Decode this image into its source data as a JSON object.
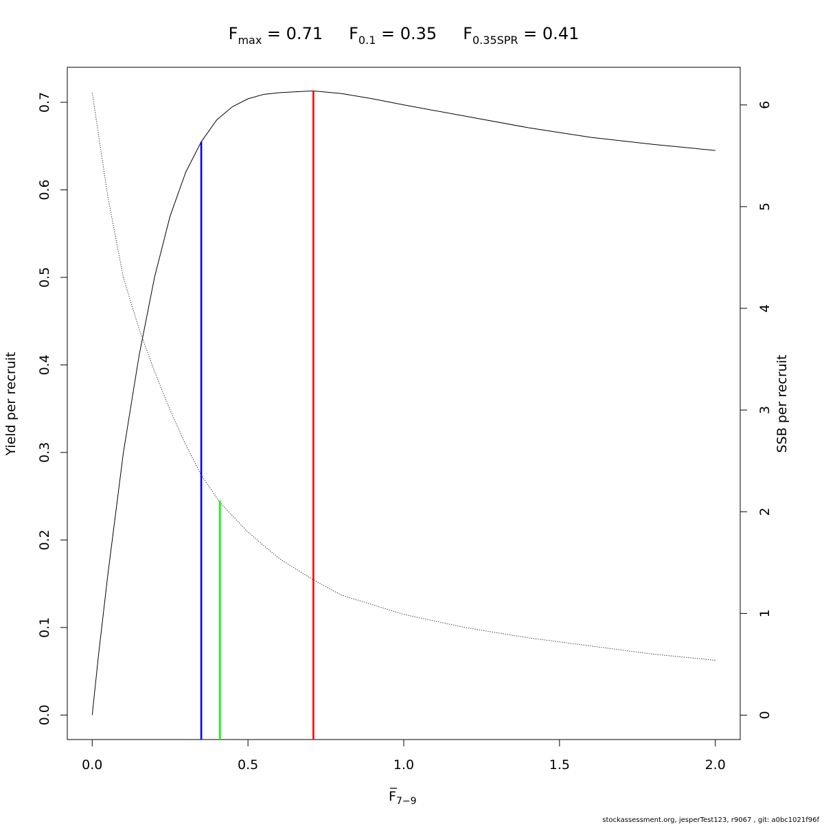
{
  "chart_data": {
    "type": "line",
    "title_parts": [
      {
        "main": "F",
        "sub": "max",
        "rest": " = 0.71"
      },
      {
        "main": "F",
        "sub": "0.1",
        "rest": " = 0.35"
      },
      {
        "main": "F",
        "sub": "0.35SPR",
        "rest": " = 0.41"
      }
    ],
    "xlabel": {
      "main": "F",
      "sub": "7−9"
    },
    "ylabel": "Yield per recruit",
    "y2label": "SSB per recruit",
    "xlim": [
      -0.08,
      2.08
    ],
    "ylim": [
      -0.028,
      0.74
    ],
    "y2lim": [
      -0.24,
      6.37
    ],
    "x_ticks": [
      "0.0",
      "0.5",
      "1.0",
      "1.5",
      "2.0"
    ],
    "y_ticks": [
      "0.0",
      "0.1",
      "0.2",
      "0.3",
      "0.4",
      "0.5",
      "0.6",
      "0.7"
    ],
    "y2_ticks": [
      "0",
      "1",
      "2",
      "3",
      "4",
      "5",
      "6"
    ],
    "series": [
      {
        "style": "solid",
        "axis": "left",
        "color": "#000000",
        "x": [
          0,
          0.02,
          0.05,
          0.1,
          0.15,
          0.2,
          0.25,
          0.3,
          0.35,
          0.4,
          0.45,
          0.5,
          0.55,
          0.6,
          0.65,
          0.71,
          0.8,
          0.9,
          1.0,
          1.2,
          1.4,
          1.6,
          1.8,
          2.0
        ],
        "y": [
          0,
          0.068,
          0.16,
          0.3,
          0.41,
          0.5,
          0.57,
          0.62,
          0.655,
          0.68,
          0.695,
          0.704,
          0.709,
          0.711,
          0.712,
          0.713,
          0.71,
          0.704,
          0.697,
          0.684,
          0.671,
          0.66,
          0.652,
          0.645
        ]
      },
      {
        "style": "dotted",
        "axis": "right",
        "color": "#000000",
        "x": [
          0,
          0.05,
          0.1,
          0.15,
          0.2,
          0.25,
          0.3,
          0.35,
          0.41,
          0.5,
          0.6,
          0.71,
          0.8,
          1.0,
          1.2,
          1.4,
          1.6,
          1.8,
          2.0
        ],
        "y": [
          6.12,
          5.1,
          4.3,
          3.8,
          3.38,
          3.0,
          2.66,
          2.36,
          2.09,
          1.8,
          1.54,
          1.33,
          1.18,
          0.99,
          0.86,
          0.76,
          0.68,
          0.6,
          0.54
        ]
      }
    ],
    "reference_lines": [
      {
        "name": "Fmax",
        "x": 0.71,
        "y_top": 0.713,
        "color": "#ff0000"
      },
      {
        "name": "F0.1",
        "x": 0.35,
        "y_top": 0.655,
        "color": "#0000ff"
      },
      {
        "name": "F0.35SPR",
        "x": 0.41,
        "y_top": 0.245,
        "color": "#00ff00"
      }
    ],
    "grid": false
  },
  "footer": "stockassessment.org, jesperTest123, r9067 , git: a0bc1021f96f"
}
